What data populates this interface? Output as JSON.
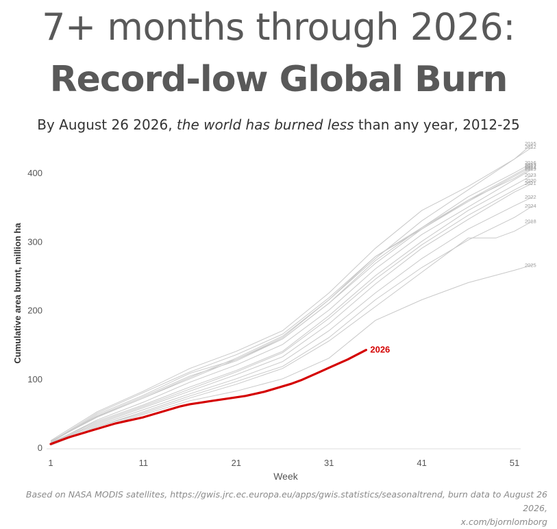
{
  "header": {
    "title_line1": "7+ months through 2026:",
    "title_line2": "Record-low Global Burn",
    "subtitle_pre": "By August 26 2026, ",
    "subtitle_em": "the world has burned less",
    "subtitle_post": " than any year, 2012-25"
  },
  "footer": {
    "line1": "Based on NASA MODIS satellites, https://gwis.jrc.ec.europa.eu/apps/gwis.statistics/seasonaltrend, burn data to August 26 2026,",
    "line2": "x.com/bjornlomborg"
  },
  "chart_data": {
    "type": "line",
    "title": "",
    "xlabel": "Week",
    "ylabel": "Cumulative area burnt, million ha",
    "xlim": [
      1,
      53
    ],
    "ylim": [
      0,
      440
    ],
    "xticks": [
      1,
      11,
      21,
      31,
      41,
      51
    ],
    "yticks": [
      0,
      100,
      200,
      300,
      400
    ],
    "grid": false,
    "legend": "direct labels at line ends",
    "colors": {
      "history": "#c8c8c8",
      "highlight": "#d40000",
      "axis": "#dddddd",
      "tick_text": "#555555"
    },
    "series": [
      {
        "name": "2015",
        "x": [
          1,
          6,
          11,
          16,
          21,
          26,
          31,
          36,
          41,
          46,
          51,
          53
        ],
        "values": [
          8,
          45,
          72,
          100,
          128,
          160,
          215,
          275,
          330,
          375,
          420,
          443
        ]
      },
      {
        "name": "2012",
        "x": [
          1,
          6,
          11,
          16,
          21,
          26,
          31,
          36,
          41,
          46,
          51,
          53
        ],
        "values": [
          10,
          52,
          82,
          115,
          140,
          170,
          225,
          290,
          345,
          380,
          420,
          438
        ]
      },
      {
        "name": "2016",
        "x": [
          1,
          6,
          11,
          16,
          21,
          26,
          31,
          36,
          41,
          46,
          51,
          53
        ],
        "values": [
          7,
          48,
          76,
          108,
          128,
          158,
          210,
          272,
          320,
          365,
          400,
          415
        ]
      },
      {
        "name": "2013",
        "x": [
          1,
          6,
          11,
          16,
          21,
          26,
          31,
          36,
          41,
          46,
          51,
          53
        ],
        "values": [
          9,
          46,
          74,
          104,
          126,
          158,
          210,
          268,
          318,
          360,
          397,
          412
        ]
      },
      {
        "name": "2017",
        "x": [
          1,
          6,
          11,
          16,
          21,
          26,
          31,
          36,
          41,
          46,
          51,
          53
        ],
        "values": [
          8,
          50,
          80,
          110,
          135,
          165,
          218,
          278,
          318,
          358,
          395,
          410
        ]
      },
      {
        "name": "2014",
        "x": [
          1,
          6,
          11,
          16,
          21,
          26,
          31,
          36,
          41,
          46,
          51,
          53
        ],
        "values": [
          9,
          44,
          72,
          102,
          130,
          162,
          215,
          278,
          320,
          360,
          392,
          408
        ]
      },
      {
        "name": "2019",
        "x": [
          1,
          6,
          11,
          16,
          21,
          26,
          31,
          36,
          41,
          46,
          51,
          53
        ],
        "values": [
          6,
          40,
          66,
          95,
          120,
          150,
          200,
          260,
          310,
          350,
          390,
          406
        ]
      },
      {
        "name": "2023",
        "x": [
          1,
          6,
          11,
          16,
          21,
          26,
          31,
          36,
          41,
          46,
          51,
          53
        ],
        "values": [
          7,
          38,
          62,
          88,
          112,
          140,
          192,
          250,
          300,
          345,
          382,
          397
        ]
      },
      {
        "name": "2020",
        "x": [
          1,
          6,
          11,
          16,
          21,
          26,
          31,
          36,
          41,
          46,
          51,
          53
        ],
        "values": [
          6,
          36,
          60,
          85,
          110,
          138,
          188,
          245,
          295,
          338,
          375,
          389
        ]
      },
      {
        "name": "2021",
        "x": [
          1,
          6,
          11,
          16,
          21,
          26,
          31,
          36,
          41,
          46,
          51,
          53
        ],
        "values": [
          6,
          34,
          58,
          82,
          106,
          132,
          180,
          238,
          290,
          332,
          372,
          385
        ]
      },
      {
        "name": "2022",
        "x": [
          1,
          6,
          11,
          16,
          21,
          26,
          31,
          36,
          41,
          46,
          51,
          53
        ],
        "values": [
          5,
          32,
          55,
          78,
          100,
          125,
          170,
          225,
          275,
          318,
          352,
          365
        ]
      },
      {
        "name": "2024",
        "x": [
          1,
          6,
          11,
          16,
          21,
          26,
          31,
          36,
          41,
          46,
          51,
          53
        ],
        "values": [
          4,
          30,
          52,
          75,
          96,
          118,
          160,
          215,
          262,
          302,
          335,
          352
        ]
      },
      {
        "name": "2018",
        "x": [
          1,
          6,
          11,
          16,
          21,
          26,
          31,
          36,
          41,
          46,
          49,
          51,
          53
        ],
        "values": [
          3,
          30,
          50,
          72,
          92,
          115,
          155,
          205,
          255,
          305,
          305,
          315,
          330
        ]
      },
      {
        "name": "2025",
        "x": [
          1,
          6,
          11,
          16,
          21,
          26,
          31,
          36,
          41,
          46,
          51,
          53
        ],
        "values": [
          4,
          28,
          48,
          68,
          82,
          100,
          130,
          185,
          215,
          240,
          258,
          266
        ]
      }
    ],
    "highlight": {
      "name": "2026",
      "x": [
        1,
        2,
        3,
        4,
        5,
        6,
        7,
        8,
        9,
        10,
        11,
        12,
        13,
        14,
        15,
        16,
        17,
        18,
        19,
        20,
        21,
        22,
        23,
        24,
        25,
        26,
        27,
        28,
        29,
        30,
        31,
        32,
        33,
        34,
        35
      ],
      "values": [
        5,
        10,
        15,
        19,
        23,
        27,
        31,
        35,
        38,
        41,
        44,
        48,
        52,
        56,
        60,
        63,
        65,
        67,
        69,
        71,
        73,
        75,
        78,
        81,
        85,
        89,
        93,
        98,
        104,
        110,
        116,
        122,
        128,
        135,
        142
      ]
    }
  }
}
